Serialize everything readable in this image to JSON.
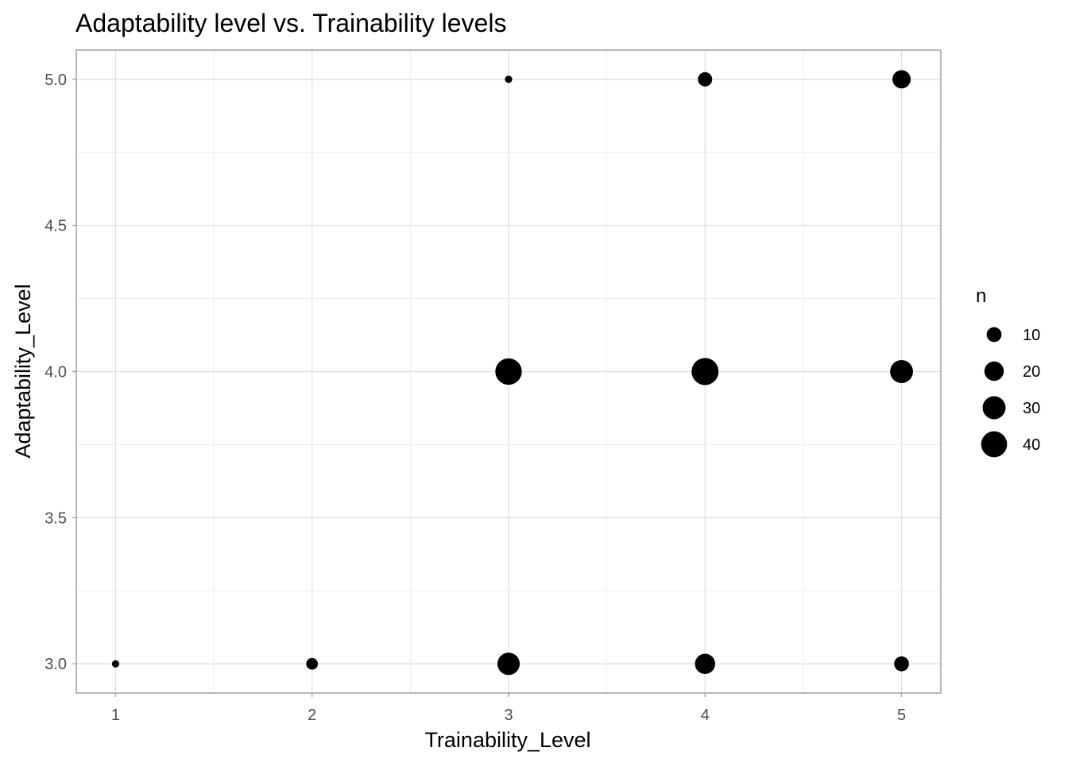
{
  "chart_data": {
    "type": "scatter",
    "title": "Adaptability level vs. Trainability levels",
    "xlabel": "Trainability_Level",
    "ylabel": "Adaptability_Level",
    "xlim": [
      0.8,
      5.2
    ],
    "ylim": [
      2.9,
      5.1
    ],
    "x_ticks": [
      1,
      2,
      3,
      4,
      5
    ],
    "x_tick_labels": [
      "1",
      "2",
      "3",
      "4",
      "5"
    ],
    "y_ticks": [
      3.0,
      3.5,
      4.0,
      4.5,
      5.0
    ],
    "y_tick_labels": [
      "3.0",
      "3.5",
      "4.0",
      "4.5",
      "5.0"
    ],
    "grid": true,
    "legend": {
      "title": "n",
      "placement": "right",
      "breaks": [
        10,
        20,
        30,
        40
      ],
      "labels": [
        "10",
        "20",
        "30",
        "40"
      ]
    },
    "points": [
      {
        "x": 1,
        "y": 3.0,
        "n": 1
      },
      {
        "x": 2,
        "y": 3.0,
        "n": 5
      },
      {
        "x": 3,
        "y": 3.0,
        "n": 28
      },
      {
        "x": 4,
        "y": 3.0,
        "n": 22
      },
      {
        "x": 5,
        "y": 3.0,
        "n": 10
      },
      {
        "x": 3,
        "y": 4.0,
        "n": 42
      },
      {
        "x": 4,
        "y": 4.0,
        "n": 44
      },
      {
        "x": 5,
        "y": 4.0,
        "n": 30
      },
      {
        "x": 3,
        "y": 5.0,
        "n": 1
      },
      {
        "x": 4,
        "y": 5.0,
        "n": 9
      },
      {
        "x": 5,
        "y": 5.0,
        "n": 17
      }
    ],
    "colors": {
      "point": "#000000",
      "panel_border": "#a6a6a6",
      "grid": "#dedede",
      "tick_text": "#4d4d4d"
    }
  }
}
